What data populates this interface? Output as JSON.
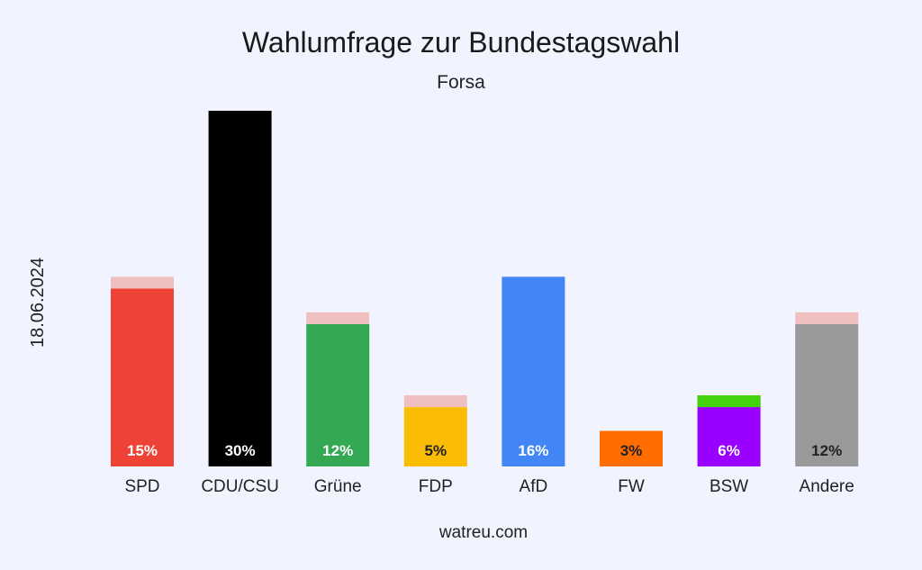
{
  "chart_data": {
    "type": "bar",
    "title": "Wahlumfrage zur Bundestagswahl",
    "subtitle": "Forsa",
    "date": "18.06.2024",
    "source": "watreu.com",
    "ylim": [
      0,
      30
    ],
    "categories": [
      "SPD",
      "CDU/CSU",
      "Grüne",
      "FDP",
      "AfD",
      "FW",
      "BSW",
      "Andere"
    ],
    "values": [
      15,
      30,
      12,
      5,
      16,
      3,
      6,
      12
    ],
    "value_labels": [
      "15%",
      "30%",
      "12%",
      "5%",
      "16%",
      "3%",
      "6%",
      "12%"
    ],
    "previous_values": [
      16,
      30,
      13,
      6,
      16,
      3,
      5,
      13
    ],
    "colors": [
      "#ee4236",
      "#000000",
      "#34a853",
      "#fbbc04",
      "#4285f4",
      "#ff6d01",
      "#9900ff",
      "#999999"
    ],
    "label_colors": [
      "#ffffff",
      "#ffffff",
      "#ffffff",
      "#222222",
      "#ffffff",
      "#222222",
      "#ffffff",
      "#222222"
    ],
    "decrease_color": "#f0c0c0",
    "increase_color": "#43d30c"
  }
}
